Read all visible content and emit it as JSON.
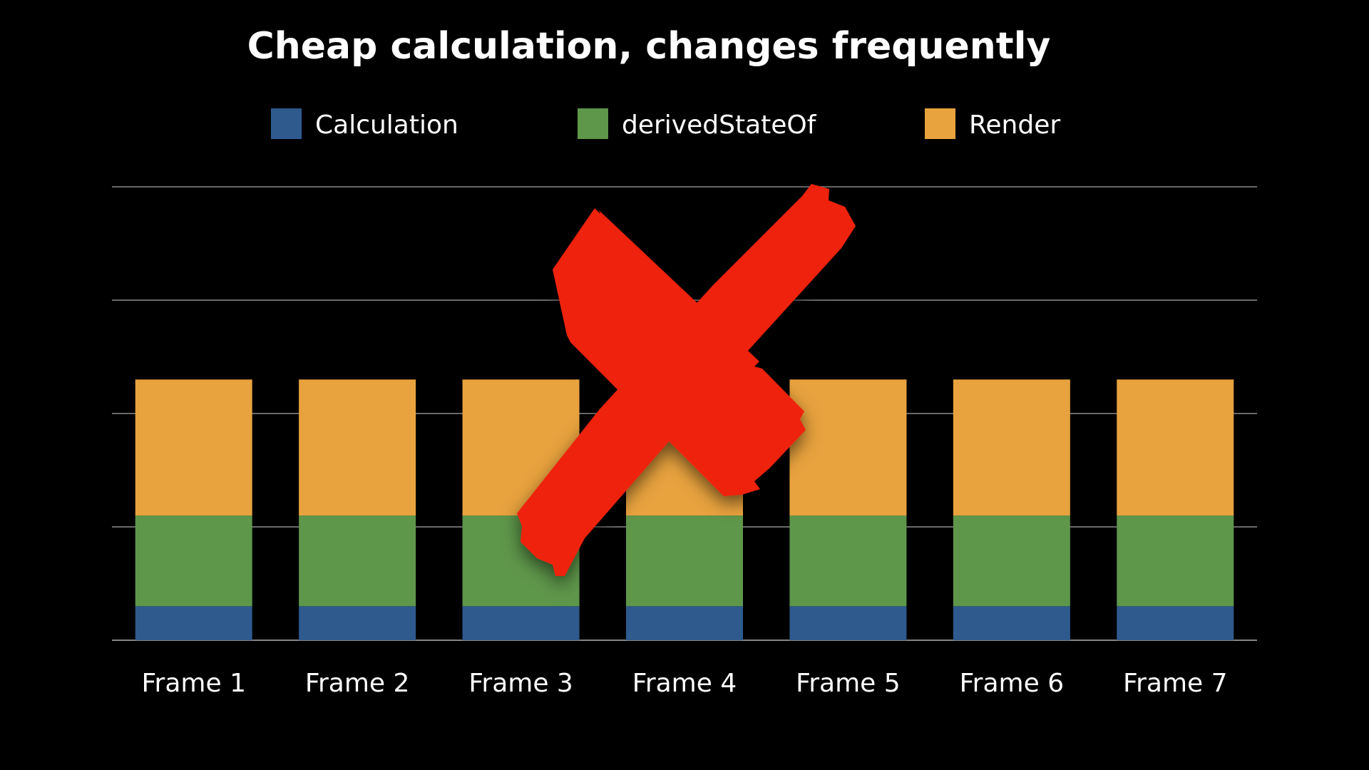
{
  "chart_data": {
    "type": "bar",
    "stacked": true,
    "title": "Cheap calculation, changes frequently",
    "xlabel": "",
    "ylabel": "",
    "categories": [
      "Frame 1",
      "Frame 2",
      "Frame 3",
      "Frame 4",
      "Frame 5",
      "Frame 6",
      "Frame 7"
    ],
    "series": [
      {
        "name": "Calculation",
        "color": "#2e5a8e",
        "values": [
          0.3,
          0.3,
          0.3,
          0.3,
          0.3,
          0.3,
          0.3
        ]
      },
      {
        "name": "derivedStateOf",
        "color": "#5e964a",
        "values": [
          0.8,
          0.8,
          0.8,
          0.8,
          0.8,
          0.8,
          0.8
        ]
      },
      {
        "name": "Render",
        "color": "#e8a23e",
        "values": [
          1.2,
          1.2,
          1.2,
          1.2,
          1.2,
          1.2,
          1.2
        ]
      }
    ],
    "ylim": [
      0,
      4
    ],
    "grid": true,
    "y_tick_labels_shown": false,
    "legend_position": "top",
    "overlay": "red-x-cross-out"
  }
}
